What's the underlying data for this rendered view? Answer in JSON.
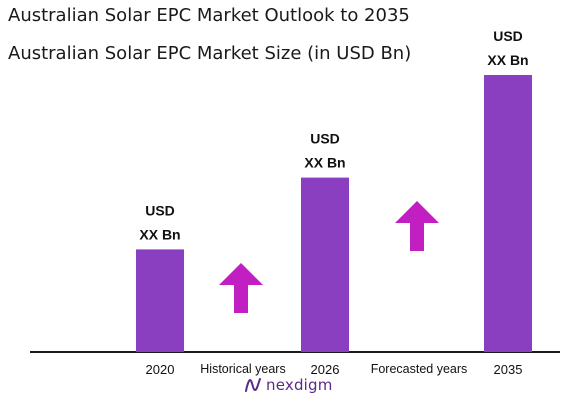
{
  "titles": {
    "outlook": "Australian Solar EPC Market Outlook to 2035",
    "size": "Australian Solar EPC Market Size (in USD Bn)"
  },
  "colors": {
    "bar": "#8A3FC1",
    "arrow": "#C21FC2",
    "axis": "#1a1a1a"
  },
  "chart_data": {
    "type": "bar",
    "categories": [
      "2020",
      "2026",
      "2035"
    ],
    "values": [
      1,
      1.7,
      2.7
    ],
    "value_labels": [
      [
        "USD",
        "XX Bn"
      ],
      [
        "USD",
        "XX Bn"
      ],
      [
        "USD",
        "XX Bn"
      ]
    ],
    "ylim": [
      0,
      2.7
    ],
    "grid": false,
    "phases": [
      "Historical years",
      "Forecasted years"
    ],
    "title": "Australian Solar EPC Market Size (in USD Bn)",
    "xlabel": "",
    "ylabel": ""
  },
  "brand": {
    "name": "nexdigm",
    "icon": "nexdigm-logo-icon"
  }
}
